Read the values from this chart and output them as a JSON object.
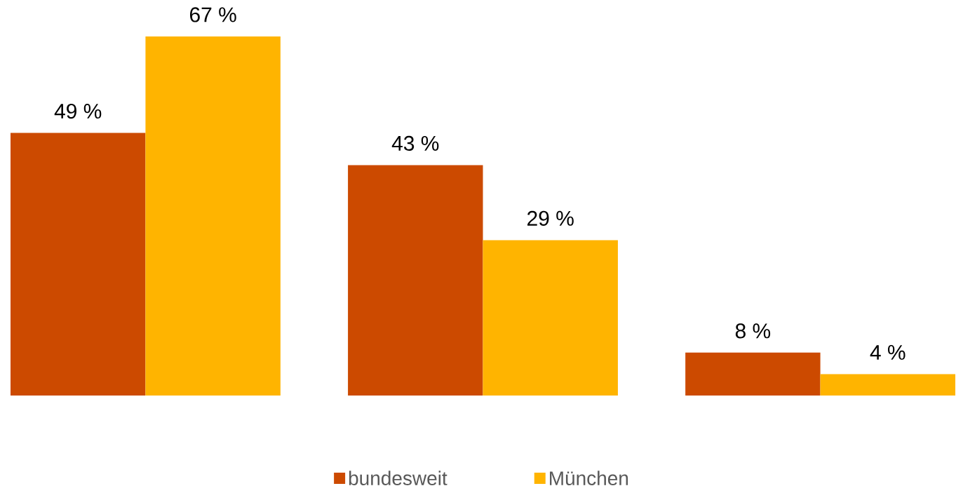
{
  "chart_data": {
    "type": "bar",
    "categories": [
      null,
      null,
      null
    ],
    "series": [
      {
        "name": "bundesweit",
        "color": "#cc4a00",
        "values": [
          49,
          43,
          8
        ],
        "value_labels": [
          "49 %",
          "43 %",
          "8 %"
        ]
      },
      {
        "name": "München",
        "color": "#ffb400",
        "values": [
          67,
          29,
          4
        ],
        "value_labels": [
          "67 %",
          "29 %",
          "4 %"
        ]
      }
    ],
    "legend": "bottom"
  }
}
